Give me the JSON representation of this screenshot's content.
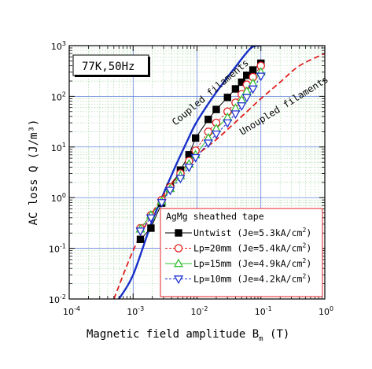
{
  "chart_data": {
    "type": "scatter",
    "title": "",
    "condition_label": "77K,50Hz",
    "xlabel": "Magnetic field amplitude B",
    "xlabel_sub": "m",
    "xlabel_unit": "(T)",
    "ylabel": "AC loss Q (J/m³)",
    "xscale": "log",
    "yscale": "log",
    "xlim": [
      0.0001,
      1
    ],
    "ylim": [
      0.01,
      1000
    ],
    "grid": true,
    "x_ticks": [
      {
        "base": "10",
        "exp": "-4"
      },
      {
        "base": "10",
        "exp": "-3"
      },
      {
        "base": "10",
        "exp": "-2"
      },
      {
        "base": "10",
        "exp": "-1"
      },
      {
        "base": "10",
        "exp": "0"
      }
    ],
    "y_ticks": [
      {
        "base": "10",
        "exp": "-2"
      },
      {
        "base": "10",
        "exp": "-1"
      },
      {
        "base": "10",
        "exp": "0"
      },
      {
        "base": "10",
        "exp": "1"
      },
      {
        "base": "10",
        "exp": "2"
      },
      {
        "base": "10",
        "exp": "3"
      }
    ],
    "legend": {
      "title": "AgMg sheathed tape",
      "placement": "bottom-right"
    },
    "series": [
      {
        "name": "Untwist (Je=5.3kA/cm²)",
        "label_main": "Untwist",
        "label_je": "(Je=5.3kA/cm",
        "label_close": ")",
        "marker": "square-filled",
        "color": "#000000",
        "line_style": "solid",
        "x": [
          0.0013,
          0.0019,
          0.0028,
          0.0038,
          0.0055,
          0.0075,
          0.0095,
          0.015,
          0.02,
          0.03,
          0.04,
          0.05,
          0.06,
          0.075,
          0.1
        ],
        "y": [
          0.15,
          0.25,
          0.78,
          1.6,
          3.5,
          7.0,
          15.0,
          35.0,
          55.0,
          95.0,
          140.0,
          190.0,
          260.0,
          330.0,
          450.0
        ]
      },
      {
        "name": "Lp=20mm (Je=5.4kA/cm²)",
        "label_main": "Lp=20mm",
        "label_je": "(Je=5.4kA/cm",
        "label_close": ")",
        "marker": "circle-open",
        "color": "#e02020",
        "line_style": "dashed",
        "x": [
          0.0013,
          0.0019,
          0.0028,
          0.0038,
          0.0055,
          0.0075,
          0.0095,
          0.015,
          0.02,
          0.03,
          0.04,
          0.05,
          0.06,
          0.075,
          0.1
        ],
        "y": [
          0.25,
          0.45,
          0.9,
          1.6,
          3.0,
          5.3,
          8.5,
          20.0,
          30.0,
          50.0,
          75.0,
          110.0,
          170.0,
          240.0,
          400.0
        ]
      },
      {
        "name": "Lp=15mm (Je=4.9kA/cm²)",
        "label_main": "Lp=15mm",
        "label_je": "(Je=4.9kA/cm",
        "label_close": ")",
        "marker": "triangle-up-open",
        "color": "#30c030",
        "line_style": "solid",
        "x": [
          0.0013,
          0.0019,
          0.0028,
          0.0038,
          0.0055,
          0.0075,
          0.0095,
          0.015,
          0.02,
          0.03,
          0.04,
          0.05,
          0.06,
          0.075,
          0.1
        ],
        "y": [
          0.24,
          0.45,
          0.85,
          1.5,
          2.7,
          4.6,
          7.0,
          15.0,
          23.0,
          38.0,
          58.0,
          85.0,
          125.0,
          180.0,
          300.0
        ]
      },
      {
        "name": "Lp=10mm (Je=4.2kA/cm²)",
        "label_main": "Lp=10mm",
        "label_je": "(Je=4.2kA/cm",
        "label_close": ")",
        "marker": "triangle-down-open",
        "color": "#2030d0",
        "line_style": "dashed",
        "x": [
          0.0013,
          0.0019,
          0.0028,
          0.0038,
          0.0055,
          0.0075,
          0.0095,
          0.015,
          0.02,
          0.03,
          0.04,
          0.05,
          0.06,
          0.075,
          0.1
        ],
        "y": [
          0.22,
          0.4,
          0.8,
          1.4,
          2.4,
          4.0,
          6.2,
          12.0,
          18.0,
          30.0,
          45.0,
          65.0,
          95.0,
          140.0,
          250.0
        ]
      }
    ],
    "reference_curves": [
      {
        "label": "Coupled filaments",
        "color": "#1830c8",
        "line_style": "solid",
        "x": [
          0.0006,
          0.001,
          0.002,
          0.004,
          0.007,
          0.01,
          0.02,
          0.04,
          0.07,
          0.1
        ],
        "y": [
          0.01,
          0.03,
          0.35,
          2.8,
          13.0,
          32.0,
          120.0,
          380.0,
          900.0,
          1000.0
        ]
      },
      {
        "label": "Unoupled filaments",
        "color": "#e02020",
        "line_style": "dashed",
        "x": [
          0.0005,
          0.001,
          0.002,
          0.004,
          0.007,
          0.01,
          0.02,
          0.05,
          0.1,
          0.2,
          0.4,
          1.0
        ],
        "y": [
          0.01,
          0.09,
          0.5,
          1.9,
          4.5,
          7.0,
          14.0,
          40.0,
          90.0,
          190.0,
          400.0,
          700.0
        ]
      }
    ]
  }
}
